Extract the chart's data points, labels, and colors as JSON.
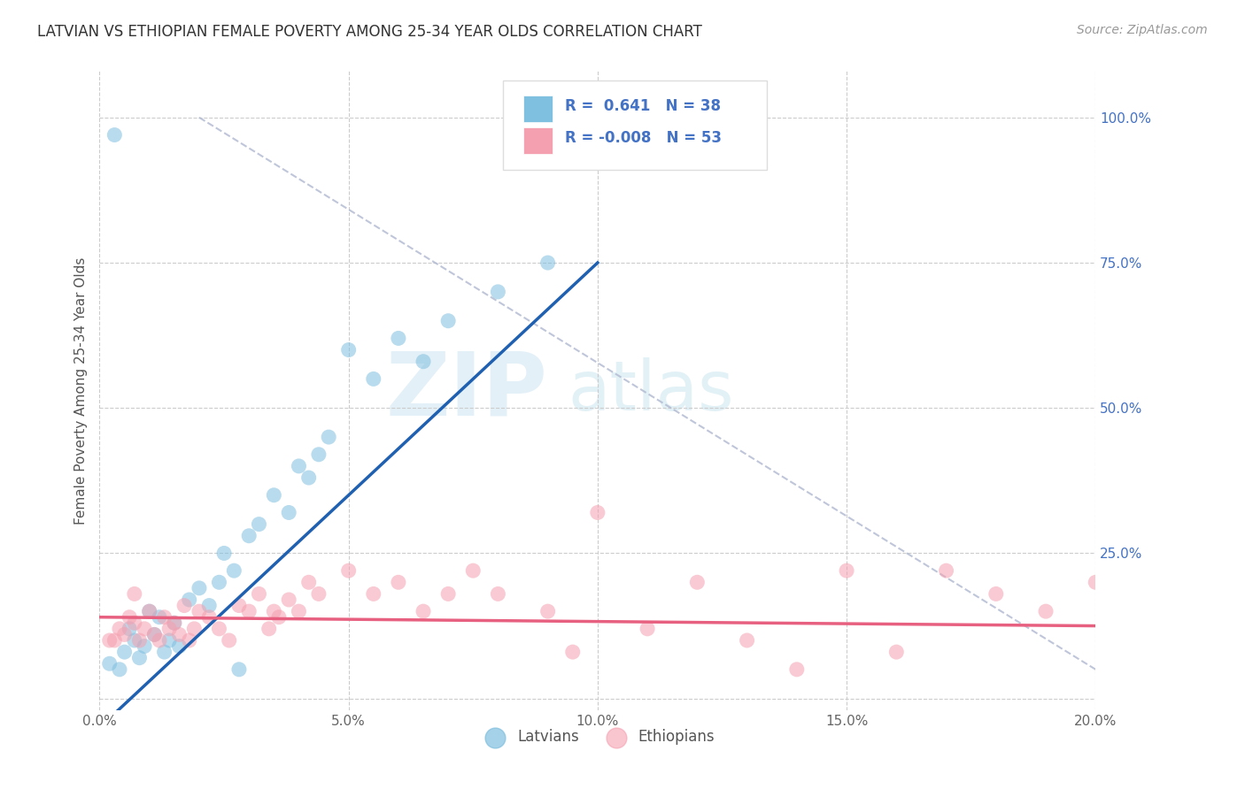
{
  "title": "LATVIAN VS ETHIOPIAN FEMALE POVERTY AMONG 25-34 YEAR OLDS CORRELATION CHART",
  "source": "Source: ZipAtlas.com",
  "ylabel": "Female Poverty Among 25-34 Year Olds",
  "xlim": [
    0.0,
    0.2
  ],
  "ylim": [
    -0.02,
    1.08
  ],
  "xticks": [
    0.0,
    0.05,
    0.1,
    0.15,
    0.2
  ],
  "xticklabels": [
    "0.0%",
    "5.0%",
    "10.0%",
    "15.0%",
    "20.0%"
  ],
  "yticks": [
    0.0,
    0.25,
    0.5,
    0.75,
    1.0
  ],
  "yticklabels": [
    "",
    "25.0%",
    "50.0%",
    "75.0%",
    "100.0%"
  ],
  "latvian_R": 0.641,
  "latvian_N": 38,
  "ethiopian_R": -0.008,
  "ethiopian_N": 53,
  "blue_color": "#7fbfdf",
  "pink_color": "#f5a0b0",
  "blue_line_color": "#2060b0",
  "pink_line_color": "#e86080",
  "watermark_zip": "ZIP",
  "watermark_atlas": "atlas",
  "latvian_x": [
    0.002,
    0.004,
    0.005,
    0.006,
    0.007,
    0.008,
    0.009,
    0.01,
    0.011,
    0.012,
    0.013,
    0.014,
    0.015,
    0.016,
    0.018,
    0.02,
    0.022,
    0.024,
    0.025,
    0.027,
    0.03,
    0.032,
    0.035,
    0.038,
    0.04,
    0.042,
    0.044,
    0.046,
    0.05,
    0.055,
    0.06,
    0.065,
    0.07,
    0.08,
    0.09,
    0.1,
    0.028,
    0.003
  ],
  "latvian_y": [
    0.06,
    0.05,
    0.08,
    0.12,
    0.1,
    0.07,
    0.09,
    0.15,
    0.11,
    0.14,
    0.08,
    0.1,
    0.13,
    0.09,
    0.17,
    0.19,
    0.16,
    0.2,
    0.25,
    0.22,
    0.28,
    0.3,
    0.35,
    0.32,
    0.4,
    0.38,
    0.42,
    0.45,
    0.6,
    0.55,
    0.62,
    0.58,
    0.65,
    0.7,
    0.75,
    0.98,
    0.05,
    0.97
  ],
  "ethiopian_x": [
    0.002,
    0.004,
    0.005,
    0.006,
    0.007,
    0.008,
    0.009,
    0.01,
    0.011,
    0.012,
    0.013,
    0.014,
    0.015,
    0.016,
    0.017,
    0.018,
    0.019,
    0.02,
    0.022,
    0.024,
    0.026,
    0.028,
    0.03,
    0.032,
    0.034,
    0.036,
    0.038,
    0.04,
    0.042,
    0.044,
    0.05,
    0.055,
    0.06,
    0.065,
    0.07,
    0.075,
    0.08,
    0.09,
    0.1,
    0.11,
    0.12,
    0.13,
    0.14,
    0.15,
    0.16,
    0.17,
    0.18,
    0.19,
    0.2,
    0.003,
    0.007,
    0.035,
    0.095
  ],
  "ethiopian_y": [
    0.1,
    0.12,
    0.11,
    0.14,
    0.13,
    0.1,
    0.12,
    0.15,
    0.11,
    0.1,
    0.14,
    0.12,
    0.13,
    0.11,
    0.16,
    0.1,
    0.12,
    0.15,
    0.14,
    0.12,
    0.1,
    0.16,
    0.15,
    0.18,
    0.12,
    0.14,
    0.17,
    0.15,
    0.2,
    0.18,
    0.22,
    0.18,
    0.2,
    0.15,
    0.18,
    0.22,
    0.18,
    0.15,
    0.32,
    0.12,
    0.2,
    0.1,
    0.05,
    0.22,
    0.08,
    0.22,
    0.18,
    0.15,
    0.2,
    0.1,
    0.18,
    0.15,
    0.08
  ]
}
